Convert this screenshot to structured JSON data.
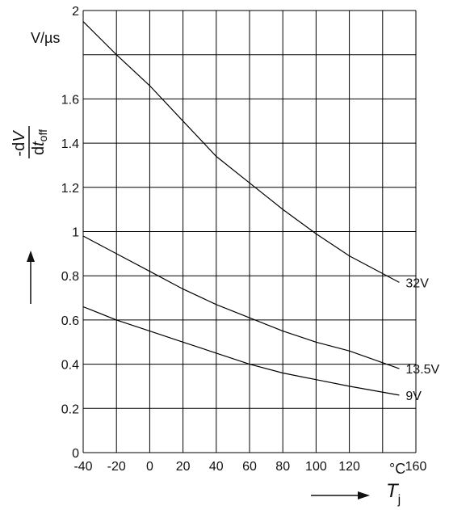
{
  "chart_data": {
    "type": "line",
    "ylabel": {
      "numerator_prefix": "-d",
      "numerator_var": "V",
      "denominator_prefix": "d",
      "denominator_var": "t",
      "denominator_sub": "off"
    },
    "yunit": "V/µs",
    "xlabel": {
      "var": "T",
      "sub": "j"
    },
    "xunit": "°C",
    "xlim": [
      -40,
      160
    ],
    "ylim": [
      0,
      2
    ],
    "grid": true,
    "x_tick_labels": [
      "-40",
      "-20",
      "0",
      "20",
      "40",
      "60",
      "80",
      "100",
      "120",
      "160"
    ],
    "y_tick_labels": [
      "0",
      "0.2",
      "0.4",
      "0.6",
      "0.8",
      "1",
      "1.2",
      "1.4",
      "1.6",
      "2"
    ],
    "series": [
      {
        "name": "32V",
        "x": [
          -40,
          -20,
          0,
          20,
          40,
          60,
          80,
          100,
          120,
          150
        ],
        "y": [
          1.95,
          1.8,
          1.66,
          1.5,
          1.34,
          1.22,
          1.1,
          0.99,
          0.89,
          0.77
        ]
      },
      {
        "name": "13.5V",
        "x": [
          -40,
          -20,
          0,
          20,
          40,
          60,
          80,
          100,
          120,
          150
        ],
        "y": [
          0.98,
          0.9,
          0.82,
          0.74,
          0.67,
          0.61,
          0.55,
          0.5,
          0.46,
          0.38
        ]
      },
      {
        "name": "9V",
        "x": [
          -40,
          -20,
          0,
          20,
          40,
          60,
          80,
          100,
          120,
          150
        ],
        "y": [
          0.66,
          0.6,
          0.55,
          0.5,
          0.45,
          0.4,
          0.36,
          0.33,
          0.3,
          0.26
        ]
      }
    ]
  }
}
